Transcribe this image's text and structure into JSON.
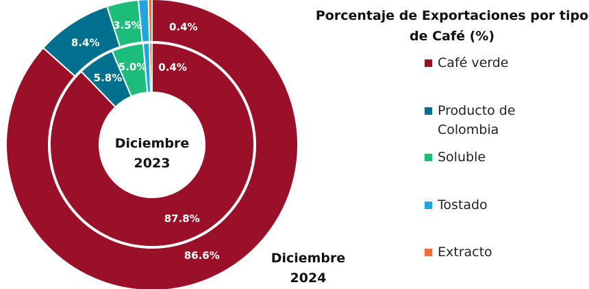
{
  "chart_data": {
    "type": "donut",
    "title": "Porcentaje de Exportaciones por tipo de Café (%)",
    "categories": [
      "Café verde",
      "Producto de Colombia",
      "Soluble",
      "Tostado",
      "Extracto"
    ],
    "colors": [
      "#9b1029",
      "#00708f",
      "#1cbc7b",
      "#1ea6de",
      "#f26b3c"
    ],
    "series": [
      {
        "name": "Diciembre 2024",
        "values": [
          86.6,
          8.4,
          3.5,
          1.1,
          0.4
        ],
        "value_labels": [
          "86.6%",
          "8.4%",
          "3.5%",
          null,
          "0.4%"
        ]
      },
      {
        "name": "Diciembre 2023",
        "values": [
          87.8,
          5.8,
          5.0,
          1.0,
          0.4
        ],
        "value_labels": [
          "87.8%",
          "5.8%",
          "5.0%",
          null,
          "0.4%"
        ]
      }
    ]
  }
}
